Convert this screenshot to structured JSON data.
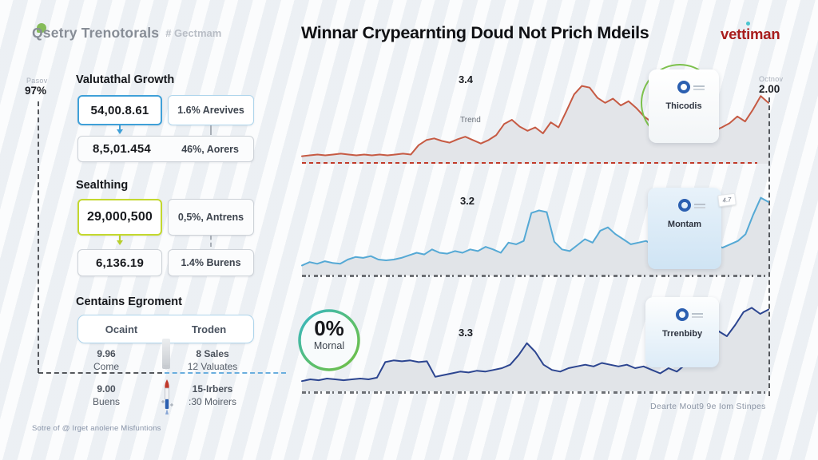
{
  "header": {
    "logo_text": "Qsetry Trenotorals",
    "logo_suffix": "# Gectmam",
    "title": "Winnar Crypearnting Doud Not Prich Mdeils",
    "brand": "vettiman"
  },
  "axes": {
    "left_label": "Pasov",
    "left_value": "97%",
    "right_label": "Octnov",
    "right_value": "2.00"
  },
  "panel": {
    "growth": {
      "heading": "Valutathal Growth",
      "primary": "54,00.8.61",
      "secondary": "1.6% Arevives",
      "result": "8,5,01.454",
      "result_note": "46%, Aorers"
    },
    "sealthing": {
      "heading": "Sealthing",
      "primary": "29,000,500",
      "secondary": "0,5%, Antrens",
      "result": "6,136.19",
      "result_note": "1.4% Burens"
    },
    "egroment": {
      "heading": "Centains Egroment",
      "col_left": "Ocaint",
      "col_right": "Troden",
      "stats": [
        {
          "value": "9.96",
          "label": "Come"
        },
        {
          "value": "8 Sales",
          "label": "12 Valuates"
        },
        {
          "value": "9.00",
          "label": "Buens"
        },
        {
          "value": "15-Irbers",
          "label": ":30 Moirers"
        }
      ]
    },
    "footnote": "Sotre of @ Irget anolene Misfuntions"
  },
  "caption": "Dearte Mout9 9e Iom Stinpes",
  "colors": {
    "accent_blue": "#3fa0d8",
    "accent_green": "#c3d82e",
    "brand_red": "#a81d1d",
    "ring_teal": "#35b6c9",
    "ring_green": "#72bf44"
  },
  "chart_data": [
    {
      "type": "area",
      "name": "thicodis-trend",
      "line_color": "#c65a43",
      "fill_color": "#e3e5e9",
      "peak_label": "3.4",
      "peak_sublabel": "Trend",
      "badge_label": "Thicodis",
      "baseline": "red-dashed",
      "ylim": [
        0,
        1
      ],
      "values": [
        0.07,
        0.08,
        0.09,
        0.08,
        0.09,
        0.1,
        0.09,
        0.08,
        0.09,
        0.08,
        0.09,
        0.08,
        0.09,
        0.1,
        0.09,
        0.2,
        0.26,
        0.28,
        0.25,
        0.23,
        0.27,
        0.3,
        0.26,
        0.22,
        0.26,
        0.32,
        0.45,
        0.5,
        0.42,
        0.37,
        0.41,
        0.34,
        0.47,
        0.41,
        0.6,
        0.8,
        0.9,
        0.88,
        0.76,
        0.7,
        0.75,
        0.67,
        0.72,
        0.64,
        0.54,
        0.47,
        0.51,
        0.43,
        0.33,
        0.27,
        0.33,
        0.29,
        0.33,
        0.37,
        0.41,
        0.46,
        0.54,
        0.48,
        0.62,
        0.78,
        0.7
      ]
    },
    {
      "type": "area",
      "name": "montam",
      "line_color": "#55a9d5",
      "fill_color": "#e1e4e8",
      "peak_label": "3.2",
      "badge_label": "Montam",
      "badge_tag": "4.7",
      "ylim": [
        0,
        1
      ],
      "values": [
        0.1,
        0.14,
        0.12,
        0.15,
        0.13,
        0.12,
        0.17,
        0.2,
        0.19,
        0.21,
        0.17,
        0.16,
        0.17,
        0.19,
        0.22,
        0.25,
        0.23,
        0.29,
        0.25,
        0.24,
        0.27,
        0.25,
        0.29,
        0.27,
        0.32,
        0.29,
        0.25,
        0.37,
        0.35,
        0.39,
        0.72,
        0.75,
        0.73,
        0.38,
        0.29,
        0.27,
        0.34,
        0.41,
        0.37,
        0.51,
        0.55,
        0.47,
        0.41,
        0.35,
        0.37,
        0.39,
        0.34,
        0.29,
        0.44,
        0.47,
        0.45,
        0.39,
        0.35,
        0.37,
        0.34,
        0.31,
        0.35,
        0.39,
        0.47,
        0.7,
        0.9,
        0.85
      ]
    },
    {
      "type": "area",
      "name": "trrenbiby",
      "line_color": "#2c4590",
      "fill_color": "#e1e4e8",
      "peak_label": "3.3",
      "badge_label": "Trrenbiby",
      "ring_value": "0%",
      "ring_label": "Mornal",
      "ylim": [
        0,
        1
      ],
      "values": [
        0.1,
        0.12,
        0.11,
        0.13,
        0.12,
        0.11,
        0.12,
        0.13,
        0.12,
        0.14,
        0.32,
        0.34,
        0.33,
        0.34,
        0.32,
        0.33,
        0.15,
        0.17,
        0.19,
        0.21,
        0.2,
        0.22,
        0.21,
        0.23,
        0.25,
        0.29,
        0.4,
        0.54,
        0.44,
        0.29,
        0.23,
        0.21,
        0.25,
        0.27,
        0.29,
        0.27,
        0.31,
        0.29,
        0.27,
        0.29,
        0.25,
        0.27,
        0.23,
        0.19,
        0.25,
        0.21,
        0.29,
        0.33,
        0.29,
        0.52,
        0.68,
        0.62,
        0.75,
        0.9,
        0.95,
        0.88,
        0.93
      ]
    }
  ]
}
